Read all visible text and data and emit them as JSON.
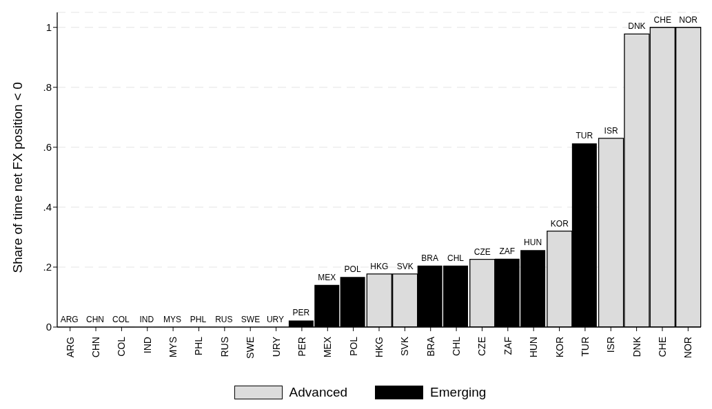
{
  "chart_data": {
    "type": "bar",
    "ylabel": "Share of time net FX position < 0",
    "categories": [
      "ARG",
      "CHN",
      "COL",
      "IND",
      "MYS",
      "PHL",
      "RUS",
      "SWE",
      "URY",
      "PER",
      "MEX",
      "POL",
      "HKG",
      "SVK",
      "BRA",
      "CHL",
      "CZE",
      "ZAF",
      "HUN",
      "KOR",
      "TUR",
      "ISR",
      "DNK",
      "CHE",
      "NOR"
    ],
    "series": [
      {
        "name": "Advanced",
        "color": "#dcdcdc",
        "values": [
          null,
          null,
          null,
          null,
          null,
          null,
          null,
          0,
          null,
          null,
          null,
          null,
          0.177,
          0.177,
          null,
          null,
          0.226,
          null,
          null,
          0.32,
          null,
          0.63,
          0.978,
          1,
          1
        ]
      },
      {
        "name": "Emerging",
        "color": "#000000",
        "values": [
          0,
          0,
          0,
          0,
          0,
          0,
          0,
          null,
          0,
          0.022,
          0.141,
          0.167,
          null,
          null,
          0.205,
          0.205,
          null,
          0.228,
          0.257,
          null,
          0.613,
          null,
          null,
          null,
          null
        ]
      }
    ],
    "ylim": [
      0,
      1.05
    ],
    "yticks": [
      0,
      {
        "value": 0.2,
        "label": ".2"
      },
      {
        "value": 0.4,
        "label": ".4"
      },
      {
        "value": 0.6,
        "label": ".6"
      },
      {
        "value": 0.8,
        "label": ".8"
      },
      1
    ],
    "grid": "y",
    "legend": "bottom"
  }
}
